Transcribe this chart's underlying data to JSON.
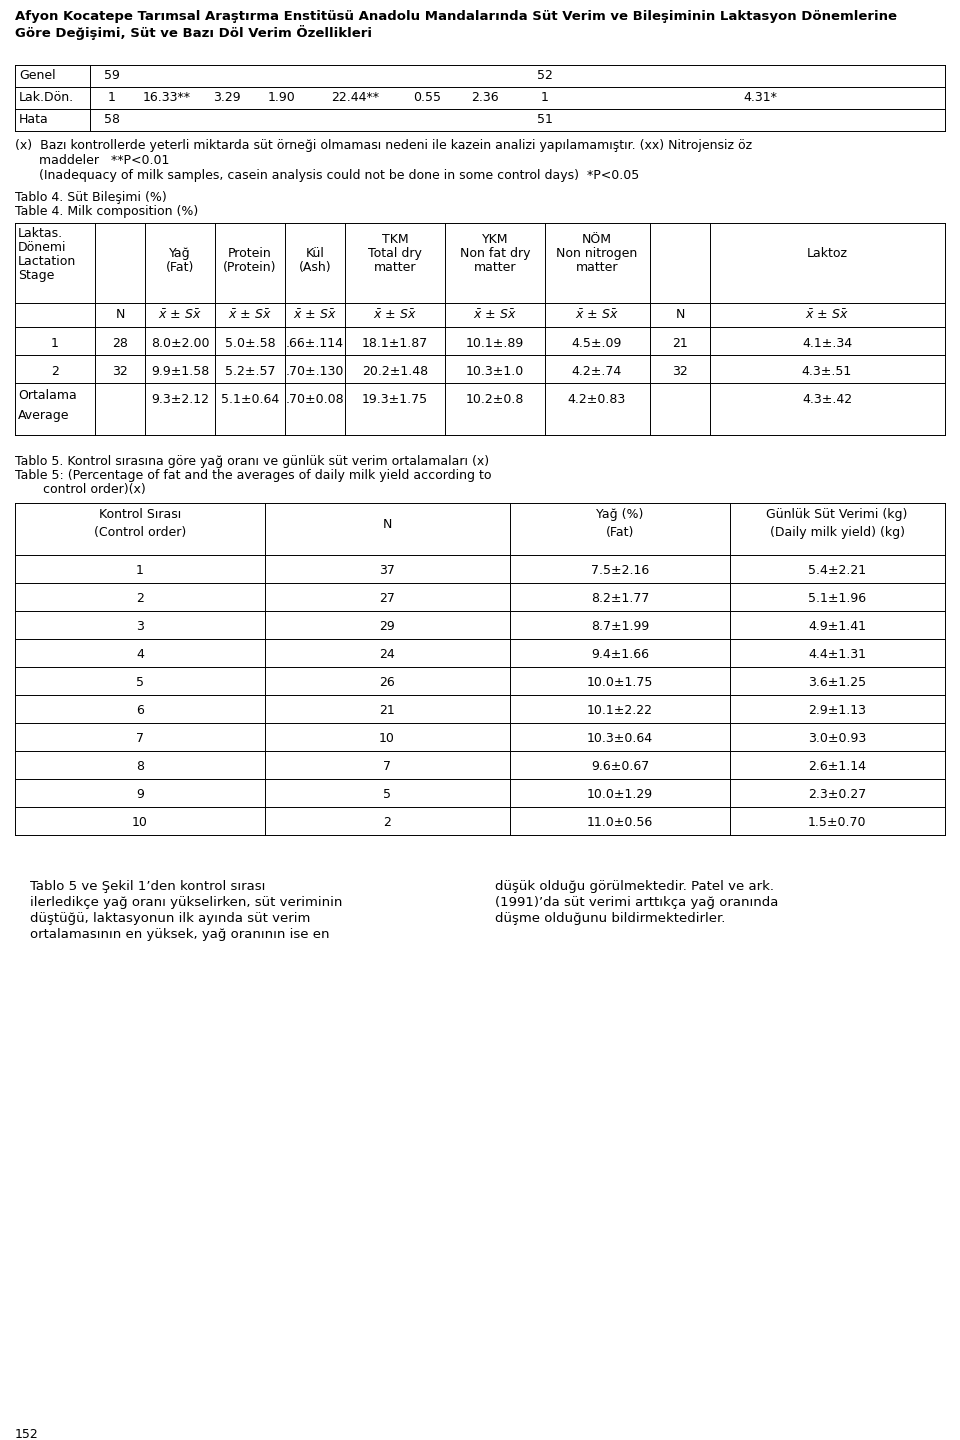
{
  "title_line1": "Afyon Kocatepe Tarımsal Araştırma Enstitüsü Anadolu Mandalarında Süt Verim ve Bileşiminin Laktasyon Dönemlerine",
  "title_line2": "Göre Değişimi, Süt ve Bazı Döl Verim Özellikleri",
  "background_color": "#ffffff",
  "page_number": "152",
  "t3_col_labels": [
    "Genel",
    "Lak.Dön.",
    "Hata"
  ],
  "t3_n1": [
    "59",
    "1",
    "58"
  ],
  "t3_vals": [
    "",
    "16.33**",
    ""
  ],
  "t3_v2": [
    "",
    "3.29",
    ""
  ],
  "t3_v3": [
    "",
    "1.90",
    ""
  ],
  "t3_v4": [
    "",
    "22.44**",
    ""
  ],
  "t3_v5": [
    "",
    "0.55",
    ""
  ],
  "t3_v6": [
    "",
    "2.36",
    ""
  ],
  "t3_n2": [
    "52",
    "1",
    "51"
  ],
  "t3_last": [
    "",
    "4.31*",
    ""
  ],
  "fn_tr": "(x)  Bazı kontrollerde yeterli miktarda süt örneği olmaması nedeni ile kazein analizi yapılamamıştır. (xx) Nitrojensiz öz",
  "fn_tr2": "      maddeler   **P<0.01",
  "fn_en": "      (Inadequacy of milk samples, casein analysis could not be done in some control days)  *P<0.05",
  "tablo4_tr": "Tablo 4. Süt Bileşimi (%)",
  "tablo4_en": "Table 4. Milk composition (%)",
  "t4_hdr": [
    "Laktas.\nDönemi\nLactation\nStage",
    "Yağ\n(Fat)",
    "Protein\n(Protein)",
    "Kül\n(Ash)",
    "TKM\nTotal dry\nmatter",
    "YKM\nNon fat dry\nmatter",
    "NÖM\nNon nitrogen\nmatter",
    "Laktoz"
  ],
  "t4_rows": [
    [
      "1",
      "28",
      "8.0±2.00",
      "5.0±.58",
      ".66±.114",
      "18.1±1.87",
      "10.1±.89",
      "4.5±.09",
      "21",
      "4.1±.34"
    ],
    [
      "2",
      "32",
      "9.9±1.58",
      "5.2±.57",
      ".70±.130",
      "20.2±1.48",
      "10.3±1.0",
      "4.2±.74",
      "32",
      "4.3±.51"
    ],
    [
      "Ortalama",
      "",
      "9.3±2.12",
      "5.1±0.64",
      ".70±0.08",
      "19.3±1.75",
      "10.2±0.8",
      "4.2±0.83",
      "",
      "4.3±.42"
    ]
  ],
  "tablo5_tr": "Tablo 5. Kontrol sırasına göre yağ oranı ve günlük süt verim ortalamaları (x)",
  "tablo5_en1": "Table 5: (Percentage of fat and the averages of daily milk yield according to",
  "tablo5_en2": "       control order)(x)",
  "t5_rows": [
    [
      "1",
      "37",
      "7.5±2.16",
      "5.4±2.21"
    ],
    [
      "2",
      "27",
      "8.2±1.77",
      "5.1±1.96"
    ],
    [
      "3",
      "29",
      "8.7±1.99",
      "4.9±1.41"
    ],
    [
      "4",
      "24",
      "9.4±1.66",
      "4.4±1.31"
    ],
    [
      "5",
      "26",
      "10.0±1.75",
      "3.6±1.25"
    ],
    [
      "6",
      "21",
      "10.1±2.22",
      "2.9±1.13"
    ],
    [
      "7",
      "10",
      "10.3±0.64",
      "3.0±0.93"
    ],
    [
      "8",
      "7",
      "9.6±0.67",
      "2.6±1.14"
    ],
    [
      "9",
      "5",
      "10.0±1.29",
      "2.3±0.27"
    ],
    [
      "10",
      "2",
      "11.0±0.56",
      "1.5±0.70"
    ]
  ],
  "para_left_lines": [
    "Tablo 5 ve Şekil 1’den kontrol sırası",
    "ilerledikçe yağ oranı yükselirken, süt veriminin",
    "düştüğü, laktasyonun ilk ayında süt verim",
    "ortalamasının en yüksek, yağ oranının ise en"
  ],
  "para_right_lines": [
    "düşük olduğu görülmektedir. Patel ve ark.",
    "(1991)’da süt verimi arttıkça yağ oranında",
    "düşme olduğunu bildirmektedirler."
  ]
}
